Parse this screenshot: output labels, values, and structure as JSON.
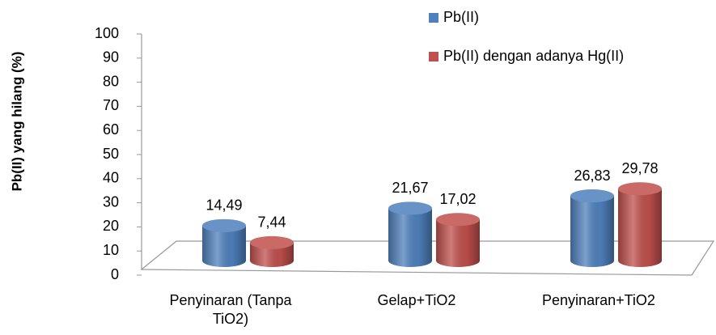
{
  "chart_data": {
    "type": "bar3d",
    "y_label": "Pb(II) yang hilang (%)",
    "categories": [
      "Penyinaran (Tanpa TiO2)",
      "Gelap+TiO2",
      "Penyinaran+TiO2"
    ],
    "series": [
      {
        "name": "Pb(II)",
        "color": "#4f81bd",
        "values": [
          14.49,
          21.67,
          26.83
        ],
        "value_labels": [
          "14,49",
          "21,67",
          "26,83"
        ]
      },
      {
        "name": "Pb(II) dengan adanya Hg(II)",
        "color": "#c0504d",
        "values": [
          7.44,
          17.02,
          29.78
        ],
        "value_labels": [
          "7,44",
          "17,02",
          "29,78"
        ]
      }
    ],
    "ylim": [
      0,
      100
    ],
    "yticks": [
      0,
      10,
      20,
      30,
      40,
      50,
      60,
      70,
      80,
      90,
      100
    ],
    "legend": "top-right"
  }
}
